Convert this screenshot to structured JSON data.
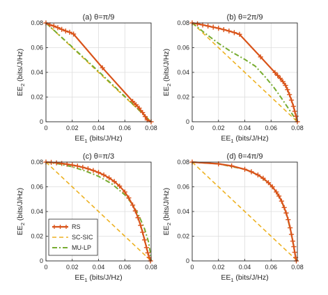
{
  "legend": {
    "placement": "bottom-left of panel (c)",
    "entries": [
      {
        "name": "RS",
        "color": "#d95319",
        "style": "solid-plus"
      },
      {
        "name": "SC-SIC",
        "color": "#edb120",
        "style": "dashed"
      },
      {
        "name": "MU-LP",
        "color": "#77ac30",
        "style": "dashdot"
      }
    ]
  },
  "chart_data": [
    {
      "type": "line",
      "title": "(a) θ=π/9",
      "xlabel": "EE1 (bits/J/Hz)",
      "ylabel": "EE2 (bits/J/Hz)",
      "xlim": [
        0,
        0.08
      ],
      "ylim": [
        0,
        0.08
      ],
      "xticks": [
        "0",
        "0.02",
        "0.04",
        "0.06",
        "0.08"
      ],
      "yticks": [
        "0",
        "0.02",
        "0.04",
        "0.06",
        "0.08"
      ],
      "grid": true,
      "series": [
        {
          "name": "RS",
          "points": [
            [
              0,
              0.08
            ],
            [
              0.003,
              0.0785
            ],
            [
              0.006,
              0.0775
            ],
            [
              0.009,
              0.0762
            ],
            [
              0.012,
              0.0748
            ],
            [
              0.015,
              0.0735
            ],
            [
              0.018,
              0.0725
            ],
            [
              0.021,
              0.071
            ],
            [
              0.043,
              0.0437
            ],
            [
              0.066,
              0.0165
            ],
            [
              0.0685,
              0.0138
            ],
            [
              0.071,
              0.011
            ],
            [
              0.0735,
              0.0075
            ],
            [
              0.0755,
              0.0042
            ],
            [
              0.077,
              0.0015
            ],
            [
              0.08,
              0
            ]
          ]
        },
        {
          "name": "SC-SIC",
          "points": [
            [
              0,
              0.08
            ],
            [
              0.08,
              0
            ]
          ]
        },
        {
          "name": "MU-LP",
          "points": [
            [
              0,
              0.08
            ],
            [
              0.02,
              0.0605
            ],
            [
              0.04,
              0.0408
            ],
            [
              0.06,
              0.0205
            ],
            [
              0.08,
              0
            ]
          ]
        }
      ]
    },
    {
      "type": "line",
      "title": "(b) θ=2π/9",
      "xlabel": "EE1 (bits/J/Hz)",
      "ylabel": "EE2 (bits/J/Hz)",
      "xlim": [
        0,
        0.08
      ],
      "ylim": [
        0,
        0.08
      ],
      "xticks": [
        "0",
        "0.02",
        "0.04",
        "0.06",
        "0.08"
      ],
      "yticks": [
        "0",
        "0.02",
        "0.04",
        "0.06",
        "0.08"
      ],
      "grid": true,
      "series": [
        {
          "name": "RS",
          "points": [
            [
              0,
              0.08
            ],
            [
              0.004,
              0.0793
            ],
            [
              0.008,
              0.0784
            ],
            [
              0.012,
              0.0775
            ],
            [
              0.016,
              0.0766
            ],
            [
              0.02,
              0.0757
            ],
            [
              0.024,
              0.0746
            ],
            [
              0.028,
              0.0735
            ],
            [
              0.032,
              0.0722
            ],
            [
              0.036,
              0.0708
            ],
            [
              0.052,
              0.0525
            ],
            [
              0.063,
              0.0398
            ],
            [
              0.065,
              0.0375
            ],
            [
              0.067,
              0.0352
            ],
            [
              0.069,
              0.0325
            ],
            [
              0.071,
              0.0295
            ],
            [
              0.0725,
              0.026
            ],
            [
              0.074,
              0.022
            ],
            [
              0.0755,
              0.0175
            ],
            [
              0.077,
              0.0125
            ],
            [
              0.078,
              0.0085
            ],
            [
              0.079,
              0.0045
            ],
            [
              0.08,
              0
            ]
          ]
        },
        {
          "name": "SC-SIC",
          "points": [
            [
              0,
              0.08
            ],
            [
              0.08,
              0
            ]
          ]
        },
        {
          "name": "MU-LP",
          "points": [
            [
              0,
              0.08
            ],
            [
              0.01,
              0.0715
            ],
            [
              0.02,
              0.0635
            ],
            [
              0.03,
              0.0565
            ],
            [
              0.04,
              0.0505
            ],
            [
              0.048,
              0.045
            ],
            [
              0.055,
              0.037
            ],
            [
              0.062,
              0.028
            ],
            [
              0.068,
              0.019
            ],
            [
              0.074,
              0.0095
            ],
            [
              0.08,
              0
            ]
          ]
        }
      ]
    },
    {
      "type": "line",
      "title": "(c) θ=π/3",
      "xlabel": "EE1 (bits/J/Hz)",
      "ylabel": "EE2 (bits/J/Hz)",
      "xlim": [
        0,
        0.08
      ],
      "ylim": [
        0,
        0.08
      ],
      "xticks": [
        "0",
        "0.02",
        "0.04",
        "0.06",
        "0.08"
      ],
      "yticks": [
        "0",
        "0.02",
        "0.04",
        "0.06",
        "0.08"
      ],
      "grid": true,
      "series": [
        {
          "name": "RS",
          "points": [
            [
              0,
              0.08
            ],
            [
              0.004,
              0.0798
            ],
            [
              0.008,
              0.0794
            ],
            [
              0.012,
              0.0789
            ],
            [
              0.016,
              0.0783
            ],
            [
              0.02,
              0.0776
            ],
            [
              0.024,
              0.0768
            ],
            [
              0.028,
              0.0758
            ],
            [
              0.032,
              0.0746
            ],
            [
              0.036,
              0.0732
            ],
            [
              0.04,
              0.0716
            ],
            [
              0.044,
              0.0696
            ],
            [
              0.048,
              0.0672
            ],
            [
              0.052,
              0.0643
            ],
            [
              0.056,
              0.0606
            ],
            [
              0.06,
              0.0558
            ],
            [
              0.063,
              0.051
            ],
            [
              0.066,
              0.0452
            ],
            [
              0.068,
              0.0405
            ],
            [
              0.07,
              0.035
            ],
            [
              0.072,
              0.0288
            ],
            [
              0.0735,
              0.0232
            ],
            [
              0.075,
              0.017
            ],
            [
              0.0765,
              0.0108
            ],
            [
              0.0775,
              0.0065
            ],
            [
              0.0785,
              0.003
            ],
            [
              0.0795,
              0
            ]
          ]
        },
        {
          "name": "SC-SIC",
          "points": [
            [
              0,
              0.08
            ],
            [
              0.08,
              0
            ]
          ]
        },
        {
          "name": "MU-LP",
          "points": [
            [
              0,
              0.08
            ],
            [
              0.01,
              0.0785
            ],
            [
              0.02,
              0.0762
            ],
            [
              0.03,
              0.0728
            ],
            [
              0.04,
              0.0685
            ],
            [
              0.05,
              0.0625
            ],
            [
              0.06,
              0.0535
            ],
            [
              0.066,
              0.0455
            ],
            [
              0.071,
              0.036
            ],
            [
              0.075,
              0.026
            ],
            [
              0.078,
              0.0155
            ],
            [
              0.0795,
              0.006
            ],
            [
              0.08,
              0
            ]
          ]
        }
      ]
    },
    {
      "type": "line",
      "title": "(d) θ=4π/9",
      "xlabel": "EE1 (bits/J/Hz)",
      "ylabel": "EE2 (bits/J/Hz)",
      "xlim": [
        0,
        0.08
      ],
      "ylim": [
        0,
        0.08
      ],
      "xticks": [
        "0",
        "0.02",
        "0.04",
        "0.06",
        "0.08"
      ],
      "yticks": [
        "0",
        "0.02",
        "0.04",
        "0.06",
        "0.08"
      ],
      "grid": true,
      "series": [
        {
          "name": "RS",
          "points": [
            [
              0,
              0.08
            ],
            [
              0.02,
              0.0786
            ],
            [
              0.03,
              0.0769
            ],
            [
              0.04,
              0.0742
            ],
            [
              0.045,
              0.0722
            ],
            [
              0.05,
              0.0696
            ],
            [
              0.054,
              0.0669
            ],
            [
              0.058,
              0.0633
            ],
            [
              0.061,
              0.06
            ],
            [
              0.064,
              0.0558
            ],
            [
              0.066,
              0.0525
            ],
            [
              0.068,
              0.0484
            ],
            [
              0.07,
              0.0432
            ],
            [
              0.0715,
              0.0388
            ],
            [
              0.073,
              0.0334
            ],
            [
              0.0745,
              0.0268
            ],
            [
              0.0755,
              0.0215
            ],
            [
              0.0765,
              0.016
            ],
            [
              0.0773,
              0.0115
            ],
            [
              0.078,
              0.007
            ],
            [
              0.0787,
              0.0028
            ],
            [
              0.0792,
              0
            ]
          ]
        },
        {
          "name": "SC-SIC",
          "points": [
            [
              0,
              0.08
            ],
            [
              0.08,
              0
            ]
          ]
        },
        {
          "name": "MU-LP",
          "points": [
            [
              0,
              0.08
            ],
            [
              0.02,
              0.0786
            ],
            [
              0.04,
              0.0742
            ],
            [
              0.05,
              0.0696
            ],
            [
              0.058,
              0.0633
            ],
            [
              0.064,
              0.0558
            ],
            [
              0.068,
              0.0484
            ],
            [
              0.072,
              0.0368
            ],
            [
              0.075,
              0.024
            ],
            [
              0.077,
              0.0135
            ],
            [
              0.0787,
              0.0028
            ],
            [
              0.0792,
              0
            ]
          ]
        }
      ]
    }
  ]
}
